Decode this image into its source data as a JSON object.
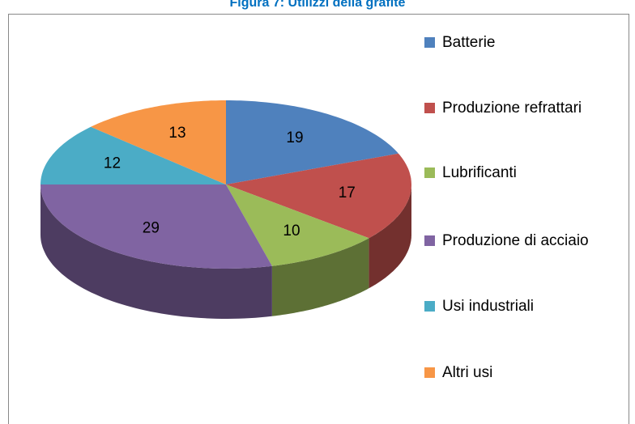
{
  "chart_data": {
    "type": "pie",
    "title": "Figura 7: Utilizzi della grafite",
    "categories": [
      "Batterie",
      "Produzione refrattari",
      "Lubrificanti",
      "Produzione di acciaio",
      "Usi industriali",
      "Altri usi"
    ],
    "values": [
      19,
      17,
      10,
      29,
      12,
      13
    ],
    "colors": [
      "#4f81bd",
      "#c0504d",
      "#9bbb59",
      "#8064a2",
      "#4bacc6",
      "#f79646"
    ],
    "legend": "right"
  }
}
